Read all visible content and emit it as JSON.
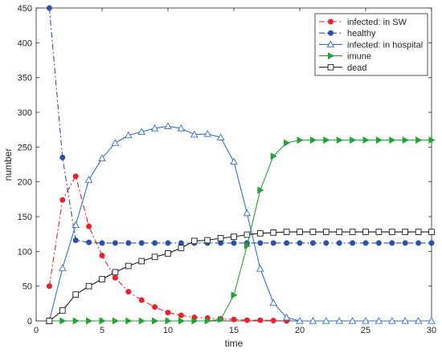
{
  "chart_data": {
    "type": "line",
    "xlabel": "time",
    "ylabel": "number",
    "xlim": [
      0,
      30
    ],
    "ylim": [
      0,
      450
    ],
    "xticks": [
      0,
      5,
      10,
      15,
      20,
      25,
      30
    ],
    "yticks": [
      0,
      50,
      100,
      150,
      200,
      250,
      300,
      350,
      400,
      450
    ],
    "grid": false,
    "legend_position": "top-right",
    "series": [
      {
        "name": "infected: in SW",
        "color": "#e8212a",
        "line_style": "dash-dot",
        "marker": "filled-circle",
        "x": [
          1,
          2,
          3,
          4,
          5,
          6,
          7,
          8,
          9,
          10,
          11,
          12,
          13,
          14,
          15,
          16,
          17,
          18,
          19
        ],
        "y": [
          50,
          174,
          208,
          136,
          94,
          62,
          42,
          30,
          20,
          12,
          8,
          5,
          4,
          3,
          2,
          1,
          1,
          0.5,
          0
        ]
      },
      {
        "name": "healthy",
        "color": "#2e4fae",
        "line_style": "dash-dot",
        "marker": "filled-circle",
        "x": [
          1,
          2,
          3,
          4,
          5,
          6,
          7,
          8,
          9,
          10,
          11,
          12,
          13,
          14,
          15,
          16,
          17,
          18,
          19,
          20,
          21,
          22,
          23,
          24,
          25,
          26,
          27,
          28,
          29,
          30
        ],
        "y": [
          450,
          235,
          116,
          113,
          112,
          112,
          112,
          112,
          112,
          112,
          112,
          112,
          112,
          112,
          112,
          112,
          112,
          112,
          112,
          112,
          112,
          112,
          112,
          112,
          112,
          112,
          112,
          112,
          112,
          112
        ]
      },
      {
        "name": "infected: in hospital",
        "color": "#2e6fd0",
        "line_style": "solid",
        "marker": "open-triangle",
        "x": [
          1,
          2,
          3,
          4,
          5,
          6,
          7,
          8,
          9,
          10,
          11,
          12,
          13,
          14,
          15,
          16,
          17,
          18,
          19,
          20,
          21,
          22,
          23,
          24,
          25,
          26,
          27,
          28,
          29,
          30
        ],
        "y": [
          0,
          76,
          138,
          203,
          234,
          256,
          267,
          272,
          277,
          280,
          277,
          268,
          269,
          264,
          229,
          155,
          75,
          26,
          5,
          0,
          0,
          0,
          0,
          0,
          0,
          0,
          0,
          0,
          0,
          0
        ]
      },
      {
        "name": "imune",
        "color": "#22a33a",
        "line_style": "solid",
        "marker": "filled-triangle-right",
        "x": [
          1,
          2,
          3,
          4,
          5,
          6,
          7,
          8,
          9,
          10,
          11,
          12,
          13,
          14,
          15,
          16,
          17,
          18,
          19,
          20,
          21,
          22,
          23,
          24,
          25,
          26,
          27,
          28,
          29,
          30
        ],
        "y": [
          0,
          0,
          0,
          0,
          0,
          0,
          0,
          0,
          0,
          0,
          0,
          0,
          0,
          2,
          37,
          108,
          188,
          237,
          256,
          260,
          260,
          260,
          260,
          260,
          260,
          260,
          260,
          260,
          260,
          260
        ]
      },
      {
        "name": "dead",
        "color": "#1a1a1a",
        "line_style": "solid",
        "marker": "open-square",
        "x": [
          1,
          2,
          3,
          4,
          5,
          6,
          7,
          8,
          9,
          10,
          11,
          12,
          13,
          14,
          15,
          16,
          17,
          18,
          19,
          20,
          21,
          22,
          23,
          24,
          25,
          26,
          27,
          28,
          29,
          30
        ],
        "y": [
          0,
          15,
          38,
          50,
          60,
          70,
          79,
          86,
          92,
          97,
          105,
          115,
          116,
          119,
          121,
          124,
          126,
          127,
          128,
          128,
          128,
          128,
          128,
          128,
          128,
          128,
          128,
          128,
          128,
          128
        ]
      }
    ]
  }
}
